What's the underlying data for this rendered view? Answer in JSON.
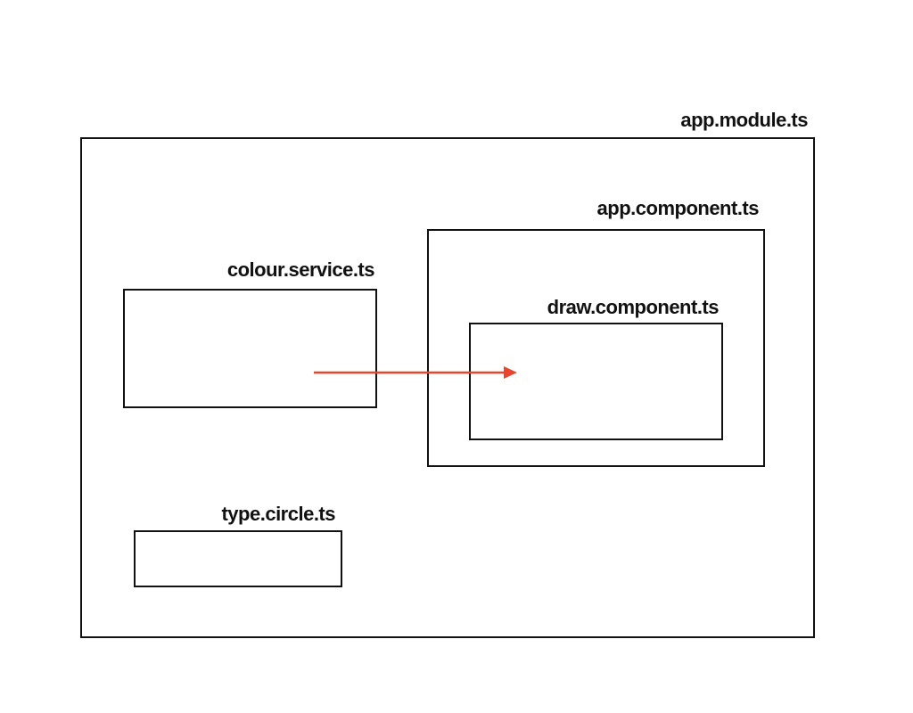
{
  "diagram": {
    "nodes": {
      "module": {
        "label": "app.module.ts"
      },
      "app": {
        "label": "app.component.ts"
      },
      "draw": {
        "label": "draw.component.ts"
      },
      "colour": {
        "label": "colour.service.ts"
      },
      "circle": {
        "label": "type.circle.ts"
      }
    },
    "edges": [
      {
        "from": "colour.service.ts",
        "to": "draw.component.ts",
        "color": "#e8452c"
      }
    ]
  },
  "colors": {
    "border": "#111111",
    "arrow": "#e8452c",
    "background": "#ffffff"
  }
}
